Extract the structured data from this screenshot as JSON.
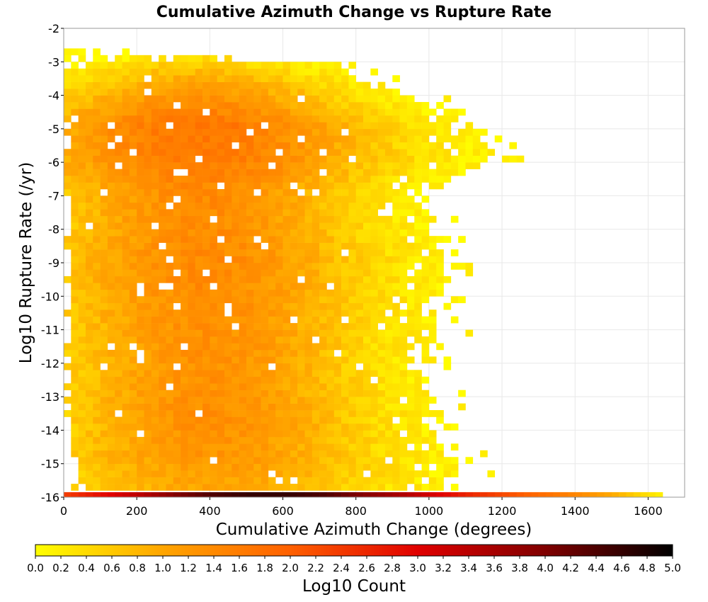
{
  "chart_data": {
    "type": "heatmap",
    "title": "Cumulative Azimuth Change vs Rupture Rate",
    "xlabel": "Cumulative Azimuth Change (degrees)",
    "ylabel": "Log10 Rupture Rate (/yr)",
    "colorbar_label": "Log10 Count",
    "xlim": [
      0,
      1700
    ],
    "ylim": [
      -16,
      -2
    ],
    "x_ticks": [
      0,
      200,
      400,
      600,
      800,
      1000,
      1200,
      1400,
      1600
    ],
    "y_ticks": [
      -16,
      -15,
      -14,
      -13,
      -12,
      -11,
      -10,
      -9,
      -8,
      -7,
      -6,
      -5,
      -4,
      -3,
      -2
    ],
    "color_range": [
      0.0,
      5.0
    ],
    "colorbar_ticks": [
      "0.0",
      "0.2",
      "0.4",
      "0.6",
      "0.8",
      "1.0",
      "1.2",
      "1.4",
      "1.6",
      "1.8",
      "2.0",
      "2.2",
      "2.4",
      "2.6",
      "2.8",
      "3.0",
      "3.2",
      "3.4",
      "3.6",
      "3.8",
      "4.0",
      "4.2",
      "4.4",
      "4.6",
      "4.8",
      "5.0"
    ],
    "colormap": [
      "#ffff00",
      "#ffa500",
      "#ff6000",
      "#e00000",
      "#800000",
      "#000000"
    ],
    "bin_width_x": 20,
    "bin_height_y": 0.2,
    "grid": true,
    "bottom_row_y": -16,
    "bottom_row": [
      [
        0,
        2.4
      ],
      [
        100,
        2.9
      ],
      [
        200,
        3.4
      ],
      [
        300,
        4.0
      ],
      [
        400,
        4.4
      ],
      [
        500,
        4.6
      ],
      [
        600,
        4.6
      ],
      [
        700,
        4.4
      ],
      [
        800,
        4.0
      ],
      [
        900,
        3.6
      ],
      [
        1000,
        3.1
      ],
      [
        1100,
        2.6
      ],
      [
        1200,
        2.2
      ],
      [
        1300,
        1.8
      ],
      [
        1400,
        1.4
      ],
      [
        1500,
        0.9
      ],
      [
        1560,
        0.5
      ],
      [
        1620,
        0.2
      ]
    ],
    "density_envelope": [
      [
        -15.8,
        40,
        1080,
        1.0
      ],
      [
        -15,
        20,
        1040,
        1.2
      ],
      [
        -14,
        20,
        1000,
        1.3
      ],
      [
        -13,
        20,
        980,
        1.3
      ],
      [
        -12,
        20,
        950,
        1.3
      ],
      [
        -11,
        20,
        1000,
        1.3
      ],
      [
        -10,
        20,
        1020,
        1.35
      ],
      [
        -9,
        20,
        1040,
        1.4
      ],
      [
        -8,
        20,
        980,
        1.35
      ],
      [
        -7,
        20,
        960,
        1.4
      ],
      [
        -6,
        20,
        1180,
        1.6
      ],
      [
        -5,
        0,
        1100,
        1.7
      ],
      [
        -4,
        0,
        900,
        1.2
      ],
      [
        -3.2,
        0,
        700,
        0.6
      ],
      [
        -2.8,
        0,
        100,
        0.2
      ]
    ]
  }
}
